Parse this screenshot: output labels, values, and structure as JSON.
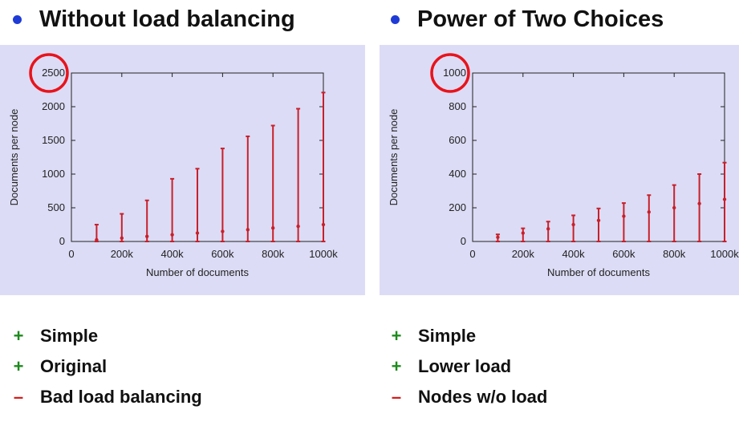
{
  "panels": [
    {
      "heading": "Without load balancing",
      "items": [
        {
          "sign": "+",
          "kind": "plus",
          "text": "Simple"
        },
        {
          "sign": "+",
          "kind": "plus",
          "text": "Original"
        },
        {
          "sign": "–",
          "kind": "minus",
          "text": "Bad load balancing"
        }
      ]
    },
    {
      "heading": "Power of Two Choices",
      "items": [
        {
          "sign": "+",
          "kind": "plus",
          "text": "Simple"
        },
        {
          "sign": "+",
          "kind": "plus",
          "text": "Lower load"
        },
        {
          "sign": "–",
          "kind": "minus",
          "text": "Nodes w/o load"
        }
      ]
    }
  ],
  "chart_data": [
    {
      "type": "range",
      "xlabel": "Number of documents",
      "ylabel": "Documents per node",
      "xlim": [
        0,
        1000000
      ],
      "ylim": [
        0,
        2500
      ],
      "xticks": [
        0,
        200000,
        400000,
        600000,
        800000,
        1000000
      ],
      "xtick_labels": [
        "0",
        "200k",
        "400k",
        "600k",
        "800k",
        "1000k"
      ],
      "yticks": [
        0,
        500,
        1000,
        1500,
        2000,
        2500
      ],
      "ytick_labels": [
        "0",
        "500",
        "1000",
        "1500",
        "2000",
        "2500"
      ],
      "highlighted_tick": "2500",
      "bar_color": "#c8202a",
      "circle_color": "#e8141c",
      "x": [
        100000,
        200000,
        300000,
        400000,
        500000,
        600000,
        700000,
        800000,
        900000,
        1000000
      ],
      "min": [
        0,
        0,
        0,
        0,
        0,
        0,
        0,
        0,
        0,
        0
      ],
      "mean": [
        25,
        50,
        75,
        100,
        125,
        150,
        175,
        200,
        225,
        250
      ],
      "max": [
        250,
        410,
        610,
        930,
        1080,
        1380,
        1560,
        1720,
        1970,
        2210
      ]
    },
    {
      "type": "range",
      "xlabel": "Number of documents",
      "ylabel": "Documents per node",
      "xlim": [
        0,
        1000000
      ],
      "ylim": [
        0,
        1000
      ],
      "xticks": [
        0,
        200000,
        400000,
        600000,
        800000,
        1000000
      ],
      "xtick_labels": [
        "0",
        "200k",
        "400k",
        "600k",
        "800k",
        "1000k"
      ],
      "yticks": [
        0,
        200,
        400,
        600,
        800,
        1000
      ],
      "ytick_labels": [
        "0",
        "200",
        "400",
        "600",
        "800",
        "1000"
      ],
      "highlighted_tick": "1000",
      "bar_color": "#c8202a",
      "circle_color": "#e8141c",
      "x": [
        100000,
        200000,
        300000,
        400000,
        500000,
        600000,
        700000,
        800000,
        900000,
        1000000
      ],
      "min": [
        0,
        0,
        0,
        0,
        0,
        0,
        0,
        0,
        0,
        0
      ],
      "mean": [
        25,
        50,
        75,
        100,
        125,
        150,
        175,
        200,
        225,
        250
      ],
      "max": [
        42,
        78,
        118,
        155,
        196,
        228,
        275,
        335,
        400,
        468
      ]
    }
  ]
}
